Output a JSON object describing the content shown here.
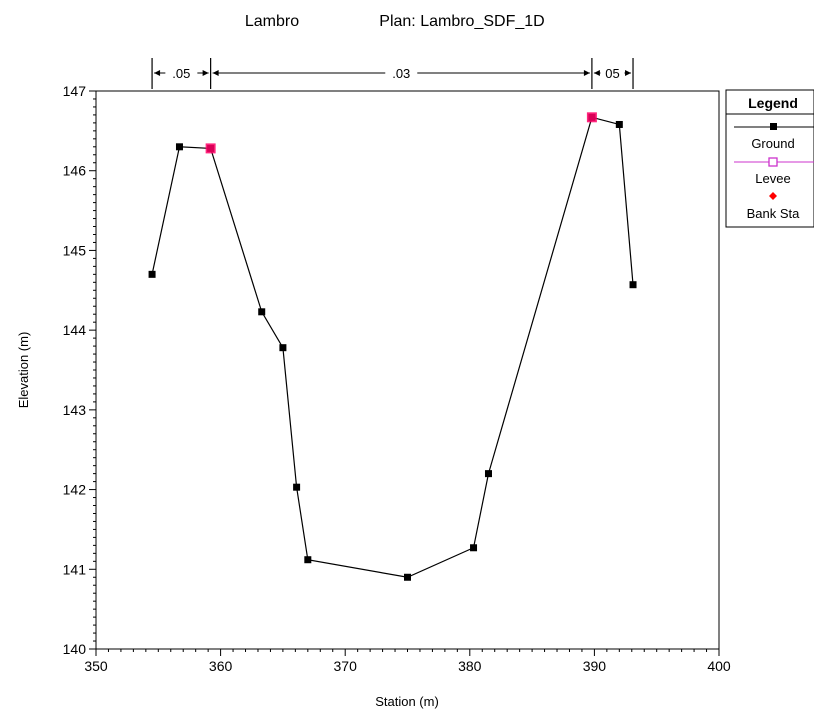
{
  "chart_data": {
    "type": "line",
    "title_left": "Lambro",
    "title_right": "Plan: Lambro_SDF_1D",
    "xlabel": "Station (m)",
    "ylabel": "Elevation (m)",
    "xlim": [
      350,
      400
    ],
    "ylim": [
      140,
      147
    ],
    "xticks": [
      350,
      360,
      370,
      380,
      390,
      400
    ],
    "yticks": [
      140,
      141,
      142,
      143,
      144,
      145,
      146,
      147
    ],
    "grid": false,
    "legend_position": "right",
    "legend": {
      "title": "Legend",
      "entries": [
        "Ground",
        "Levee",
        "Bank Sta"
      ]
    },
    "series": [
      {
        "name": "Ground",
        "color": "#000000",
        "marker": "square",
        "points": [
          [
            354.5,
            144.7
          ],
          [
            356.7,
            146.3
          ],
          [
            359.2,
            146.28
          ],
          [
            363.3,
            144.23
          ],
          [
            365.0,
            143.78
          ],
          [
            366.1,
            142.03
          ],
          [
            367.0,
            141.12
          ],
          [
            375.0,
            140.9
          ],
          [
            380.3,
            141.27
          ],
          [
            381.5,
            142.2
          ],
          [
            389.8,
            146.67
          ],
          [
            392.0,
            146.58
          ],
          [
            393.1,
            144.57
          ]
        ]
      },
      {
        "name": "Levee",
        "color": "#cc33cc",
        "marker": "open-square",
        "points": []
      },
      {
        "name": "Bank Sta",
        "color": "#ff0000",
        "marker": "diamond",
        "points": [
          [
            359.2,
            146.28
          ],
          [
            389.8,
            146.67
          ]
        ]
      }
    ],
    "n_values": [
      {
        "label": ".05",
        "x_start": 354.5,
        "x_end": 359.2
      },
      {
        "label": ".03",
        "x_start": 359.2,
        "x_end": 389.8
      },
      {
        "label": "05",
        "x_start": 389.8,
        "x_end": 393.1
      }
    ]
  }
}
